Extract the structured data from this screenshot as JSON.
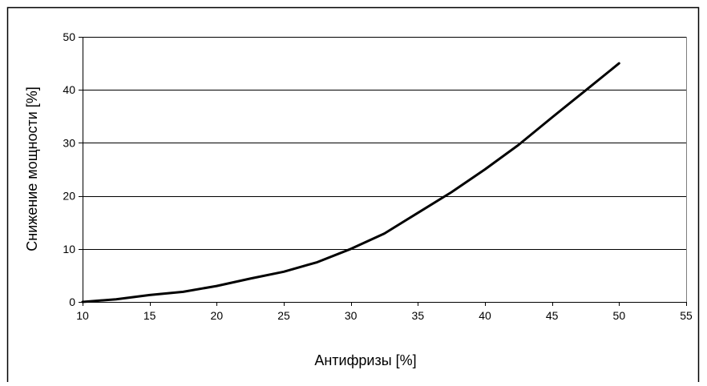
{
  "chart_data": {
    "type": "line",
    "title": "",
    "xlabel": "Антифризы [%]",
    "ylabel": "Снижение мощности [%]",
    "xlim": [
      10,
      55
    ],
    "ylim": [
      0,
      50
    ],
    "x_ticks": [
      10,
      15,
      20,
      25,
      30,
      35,
      40,
      45,
      50,
      55
    ],
    "y_ticks": [
      0,
      10,
      20,
      30,
      40,
      50
    ],
    "grid": "horizontal",
    "legend": "none",
    "series": [
      {
        "color": "#000000",
        "x": [
          10,
          12.5,
          15,
          17.5,
          20,
          22.5,
          25,
          27.5,
          30,
          32.5,
          35,
          37.5,
          40,
          42.5,
          45,
          47.5,
          50
        ],
        "y": [
          0,
          0.5,
          1.3,
          1.9,
          3.0,
          4.4,
          5.7,
          7.5,
          10.0,
          12.9,
          16.8,
          20.7,
          25.0,
          29.6,
          34.8,
          39.9,
          45.0
        ]
      }
    ]
  }
}
